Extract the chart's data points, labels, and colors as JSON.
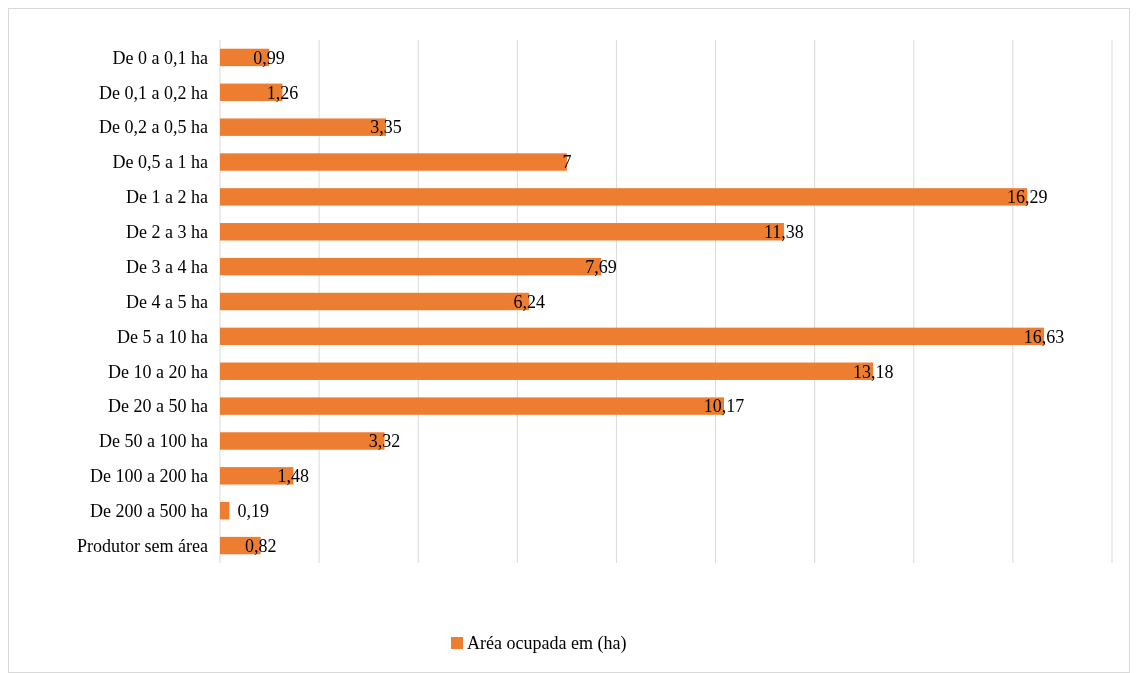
{
  "chart_data": {
    "type": "bar",
    "orientation": "horizontal",
    "categories": [
      "De 0 a 0,1 ha",
      "De 0,1 a 0,2 ha",
      "De 0,2 a 0,5 ha",
      "De 0,5 a 1 ha",
      "De 1 a 2 ha",
      "De 2 a 3 ha",
      "De 3 a 4 ha",
      "De 4 a 5 ha",
      "De 5 a 10 ha",
      "De 10 a 20 ha",
      "De 20 a 50 ha",
      "De 50 a 100 ha",
      "De 100 a 200 ha",
      "De 200 a 500 ha",
      "Produtor sem área"
    ],
    "series": [
      {
        "name": "Aréa ocupada em (ha)",
        "color": "#ed7d31",
        "values": [
          0.99,
          1.26,
          3.35,
          7,
          16.29,
          11.38,
          7.69,
          6.24,
          16.63,
          13.18,
          10.17,
          3.32,
          1.48,
          0.19,
          0.82
        ],
        "value_labels": [
          "0,99",
          "1,26",
          "3,35",
          "7",
          "16,29",
          "11,38",
          "7,69",
          "6,24",
          "16,63",
          "13,18",
          "10,17",
          "3,32",
          "1,48",
          "0,19",
          "0,82"
        ]
      }
    ],
    "xlim": [
      0,
      18
    ],
    "xticks": [
      {
        "value": 0,
        "label": null
      },
      {
        "value": 2,
        "label": null
      },
      {
        "value": 4,
        "label": null
      },
      {
        "value": 6,
        "label": null
      },
      {
        "value": 8,
        "label": null
      },
      {
        "value": 10,
        "label": null
      },
      {
        "value": 12,
        "label": null
      },
      {
        "value": 14,
        "label": null
      },
      {
        "value": 16,
        "label": null
      },
      {
        "value": 18,
        "label": null
      }
    ],
    "grid": "x",
    "legend": "bottom",
    "tick_labels": "y"
  }
}
